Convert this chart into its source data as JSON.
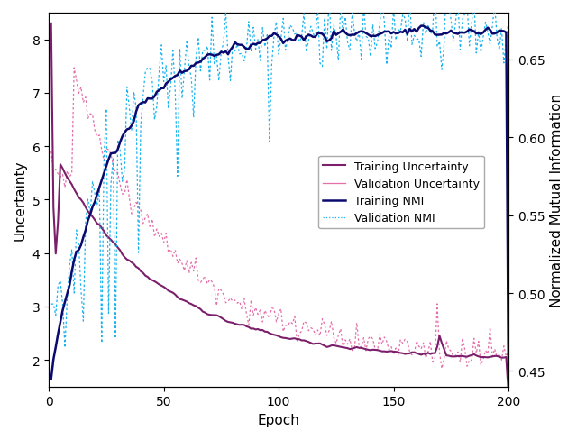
{
  "xlabel": "Epoch",
  "ylabel_left": "Uncertainty",
  "ylabel_right": "Normalized Mutual Information",
  "xlim": [
    0,
    200
  ],
  "ylim_left": [
    1.5,
    8.5
  ],
  "ylim_right": [
    0.44,
    0.68
  ],
  "xticks": [
    0,
    50,
    100,
    150,
    200
  ],
  "yticks_left": [
    2,
    3,
    4,
    5,
    6,
    7,
    8
  ],
  "yticks_right": [
    0.45,
    0.5,
    0.55,
    0.6,
    0.65
  ],
  "n_epochs": 200,
  "train_uncertainty_color": "#7B1F6A",
  "val_uncertainty_color": "#E060A0",
  "train_nmi_color": "#0A0A6E",
  "val_nmi_color": "#00AAEE",
  "legend_labels": [
    "Training Uncertainty",
    "Validation Uncertainty",
    "Training NMI",
    "Validation NMI"
  ],
  "figsize": [
    6.4,
    4.89
  ],
  "dpi": 100
}
